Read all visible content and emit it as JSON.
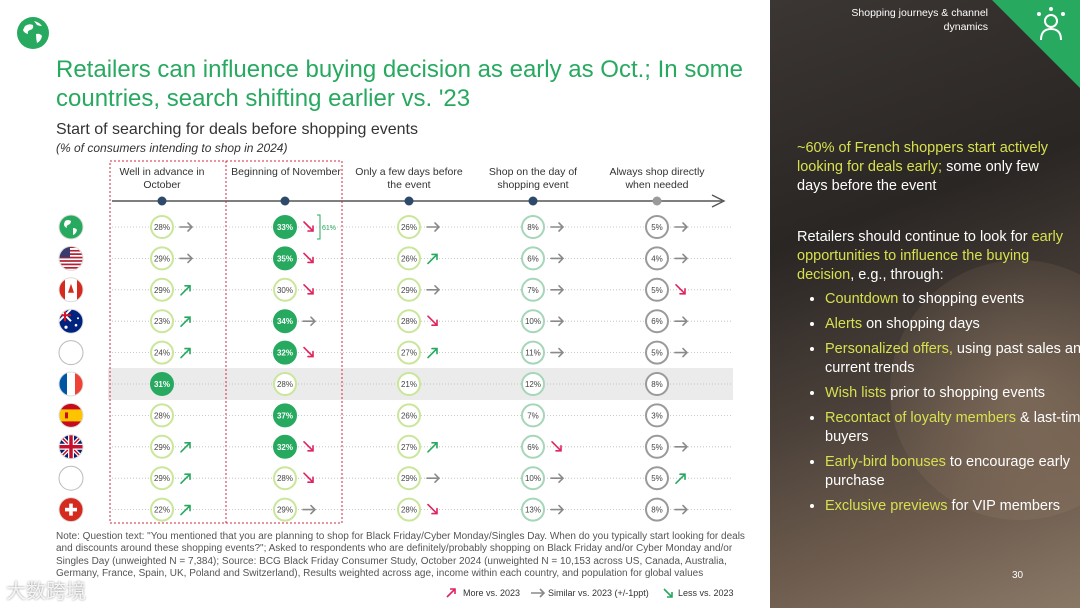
{
  "header": {
    "section_tag": "Shopping journeys & channel dynamics",
    "page_number": "30"
  },
  "title": "Retailers can influence buying decision as early as Oct.; In some countries, search shifting earlier vs. '23",
  "chart_data": {
    "type": "table",
    "title": "Start of searching for deals before shopping events",
    "subtitle": "(% of consumers intending to shop in 2024)",
    "columns": [
      "Well in advance in October",
      "Beginning of November",
      "Only a few days before the event",
      "Shop on the day of shopping event",
      "Always shop directly when needed"
    ],
    "rows": [
      {
        "flag": "globe",
        "values": [
          28,
          33,
          26,
          8,
          5
        ],
        "trend": [
          "similar",
          "less",
          "similar",
          "similar",
          "similar"
        ],
        "highlight": [
          false,
          true,
          false,
          false,
          false
        ]
      },
      {
        "flag": "usa",
        "values": [
          29,
          35,
          26,
          6,
          4
        ],
        "trend": [
          "similar",
          "less",
          "more",
          "similar",
          "similar"
        ],
        "highlight": [
          false,
          true,
          false,
          false,
          false
        ]
      },
      {
        "flag": "canada",
        "values": [
          29,
          30,
          29,
          7,
          5
        ],
        "trend": [
          "more",
          "less",
          "similar",
          "similar",
          "less"
        ],
        "highlight": [
          false,
          false,
          false,
          false,
          false
        ]
      },
      {
        "flag": "australia",
        "values": [
          23,
          34,
          28,
          10,
          6
        ],
        "trend": [
          "more",
          "similar",
          "less",
          "similar",
          "similar"
        ],
        "highlight": [
          false,
          true,
          false,
          false,
          false
        ]
      },
      {
        "flag": "blank",
        "values": [
          24,
          32,
          27,
          11,
          5
        ],
        "trend": [
          "more",
          "less",
          "more",
          "similar",
          "similar"
        ],
        "highlight": [
          false,
          true,
          false,
          false,
          false
        ]
      },
      {
        "flag": "france",
        "values": [
          31,
          28,
          21,
          12,
          8
        ],
        "trend": [
          "none",
          "none",
          "none",
          "none",
          "none"
        ],
        "highlight": [
          true,
          false,
          false,
          false,
          false
        ]
      },
      {
        "flag": "spain",
        "values": [
          28,
          37,
          26,
          7,
          3
        ],
        "trend": [
          "none",
          "none",
          "none",
          "none",
          "none"
        ],
        "highlight": [
          false,
          true,
          false,
          false,
          false
        ]
      },
      {
        "flag": "uk",
        "values": [
          29,
          32,
          27,
          6,
          5
        ],
        "trend": [
          "more",
          "less",
          "more",
          "less",
          "similar"
        ],
        "highlight": [
          false,
          true,
          false,
          false,
          false
        ]
      },
      {
        "flag": "blank",
        "values": [
          29,
          28,
          29,
          10,
          5
        ],
        "trend": [
          "more",
          "less",
          "similar",
          "similar",
          "more"
        ],
        "highlight": [
          false,
          false,
          false,
          false,
          false
        ]
      },
      {
        "flag": "switzerland",
        "values": [
          22,
          29,
          28,
          13,
          8
        ],
        "trend": [
          "more",
          "similar",
          "less",
          "similar",
          "similar"
        ],
        "highlight": [
          false,
          false,
          false,
          false,
          false
        ]
      }
    ],
    "bracket_label": "61%",
    "legend": [
      "More vs. 2023",
      "Similar vs. 2023 (+/-1ppt)",
      "Less vs. 2023"
    ],
    "colors": {
      "green": "#27a960",
      "light_green": "#c9e69a",
      "grey": "#8a8a8a",
      "pink": "#e0245e",
      "red_dashed": "#d9263f"
    }
  },
  "note": "Note: Question text: \"You mentioned that you are planning to shop for Black Friday/Cyber Monday/Singles Day. When do you typically start looking for deals and discounts around these shopping events?\"; Asked to respondents who are definitely/probably shopping on Black Friday and/or Cyber Monday and/or Singles Day (unweighted N = 7,384); Source: BCG Black Friday Consumer Study, October 2024 (unweighted N = 10,153 across US, Canada, Australia, Germany, France, Spain, UK, Poland and Switzerland), Results weighted across age, income within each country, and population for global values",
  "watermark": "大数跨境",
  "right_panel": {
    "p1_highlight": "~60% of French shoppers start actively looking for deals early;",
    "p1_rest": " some only few days before the event",
    "p2_start": "Retailers should continue to look for ",
    "p2_highlight": "early opportunities to influence the buying decision",
    "p2_end": ", e.g., through:",
    "bullets": [
      {
        "hl": "Countdown",
        "rest": " to shopping events"
      },
      {
        "hl": "Alerts",
        "rest": " on shopping days"
      },
      {
        "hl": "Personalized offers,",
        "rest": " using past sales and current trends"
      },
      {
        "hl": "Wish lists",
        "rest": " prior to shopping events"
      },
      {
        "hl": "Recontact of loyalty members",
        "rest": " & last-time buyers"
      },
      {
        "hl": "Early-bird bonuses",
        "rest": " to encourage early purchase"
      },
      {
        "hl": "Exclusive previews",
        "rest": " for VIP members"
      }
    ]
  }
}
